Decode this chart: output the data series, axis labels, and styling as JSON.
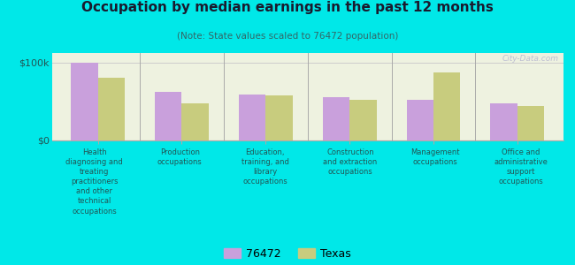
{
  "title": "Occupation by median earnings in the past 12 months",
  "subtitle": "(Note: State values scaled to 76472 population)",
  "categories": [
    "Health\ndiagnosing and\ntreating\npractitioners\nand other\ntechnical\noccupations",
    "Production\noccupations",
    "Education,\ntraining, and\nlibrary\noccupations",
    "Construction\nand extraction\noccupations",
    "Management\noccupations",
    "Office and\nadministrative\nsupport\noccupations"
  ],
  "values_76472": [
    100000,
    62000,
    59000,
    55000,
    52000,
    48000
  ],
  "values_texas": [
    80000,
    48000,
    58000,
    52000,
    87000,
    44000
  ],
  "color_76472": "#c9a0dc",
  "color_texas": "#c8cc7e",
  "yticks": [
    0,
    100000
  ],
  "ytick_labels": [
    "$0",
    "$100k"
  ],
  "ylim": [
    0,
    112000
  ],
  "background_color": "#00e8e8",
  "plot_bg": "#eef2e0",
  "legend_label_76472": "76472",
  "legend_label_texas": "Texas",
  "watermark": "City-Data.com",
  "bar_width": 0.32,
  "title_color": "#1a1a2e",
  "subtitle_color": "#336666",
  "label_color": "#225555"
}
